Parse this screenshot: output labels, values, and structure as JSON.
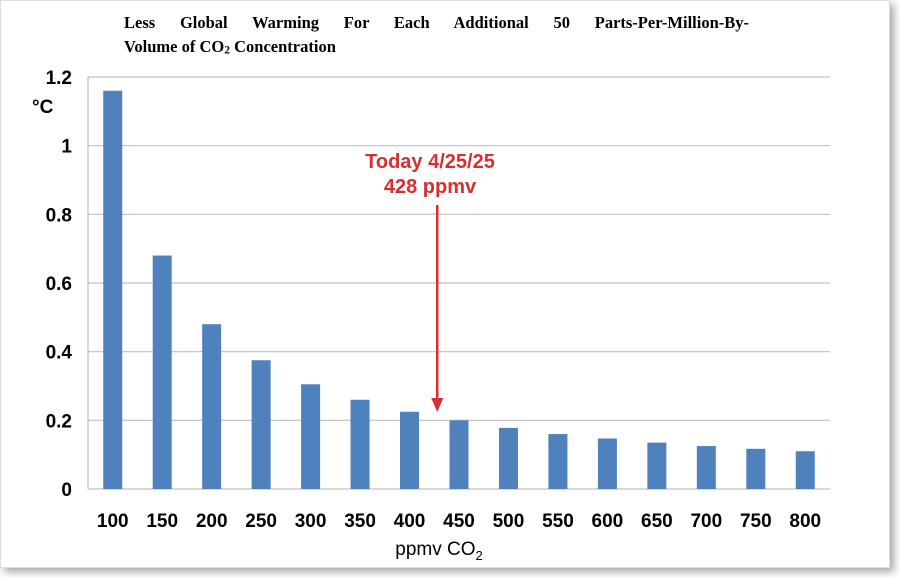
{
  "title": {
    "line1": "Less Global Warming For Each Additional 50 Parts-Per-Million-By-",
    "line2_prefix": "Volume of CO",
    "line2_sub": "2",
    "line2_suffix": " Concentration"
  },
  "colors": {
    "bar": "#4F81BD",
    "grid": "#BFBFBF",
    "annotation": "#D62F2F"
  },
  "chart_data": {
    "type": "bar",
    "categories": [
      "100",
      "150",
      "200",
      "250",
      "300",
      "350",
      "400",
      "450",
      "500",
      "550",
      "600",
      "650",
      "700",
      "750",
      "800"
    ],
    "values": [
      1.16,
      0.68,
      0.48,
      0.375,
      0.305,
      0.26,
      0.225,
      0.2,
      0.178,
      0.16,
      0.147,
      0.135,
      0.125,
      0.117,
      0.11
    ],
    "ylim": [
      0,
      1.2
    ],
    "yticks": [
      "0",
      "0.2",
      "0.4",
      "0.6",
      "0.8",
      "1",
      "1.2"
    ],
    "ylabel": "°C",
    "xlabel_prefix": "ppmv CO",
    "xlabel_sub": "2",
    "grid": true,
    "annotation": {
      "line1": "Today 4/25/25",
      "line2": "428 ppmv",
      "arrow_x_value": 428
    }
  }
}
